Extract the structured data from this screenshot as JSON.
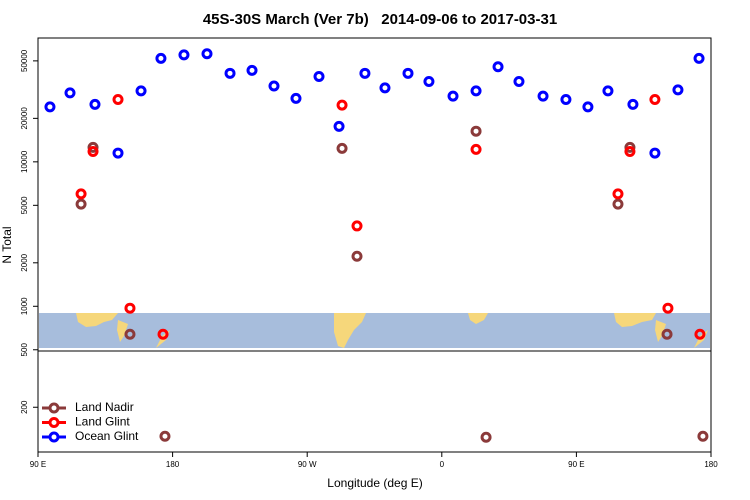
{
  "chart_data": {
    "type": "scatter",
    "title": "45S-30S March (Ver 7b)   2014-09-06 to 2017-03-31",
    "x_label": "Longitude (deg E)",
    "y_label": "N Total",
    "xlim": [
      90,
      540
    ],
    "xticks": [
      {
        "value": 90,
        "label": "90 E"
      },
      180,
      {
        "value": 270,
        "label": "90 W"
      },
      {
        "value": 360,
        "label": "0"
      },
      {
        "value": 450,
        "label": "90 E"
      },
      {
        "value": 540,
        "label": "180"
      }
    ],
    "ylim": [
      98,
      72000
    ],
    "ylog": true,
    "yticks": [
      200,
      500,
      1000,
      2000,
      5000,
      10000,
      20000,
      50000
    ],
    "legend": "lower left",
    "series": [
      {
        "name": "Land Nadir",
        "color": "#8b3a3a",
        "x": [
          118.8,
          126.8,
          151.5,
          174.9,
          293.3,
          303.3,
          382.9,
          389.6,
          477.8,
          485.8,
          510.6,
          534.6
        ],
        "values": [
          5100,
          12600,
          640,
          126,
          12400,
          2220,
          16300,
          124,
          5100,
          12600,
          640,
          126
        ]
      },
      {
        "name": "Land Glint",
        "color": "#ff0000",
        "x": [
          118.8,
          126.8,
          143.5,
          151.5,
          173.6,
          293.3,
          303.3,
          382.9,
          477.8,
          485.8,
          502.5,
          511.2,
          532.6
        ],
        "values": [
          6000,
          11800,
          27000,
          970,
          640,
          24700,
          3600,
          12200,
          6000,
          11800,
          27000,
          970,
          640
        ]
      },
      {
        "name": "Ocean Glint",
        "color": "#0000ff",
        "x": [
          98.0,
          111.4,
          128.1,
          143.5,
          158.9,
          172.2,
          187.6,
          203.0,
          218.4,
          233.1,
          247.8,
          262.5,
          277.9,
          291.3,
          308.6,
          322.0,
          337.4,
          351.4,
          367.5,
          382.9,
          397.6,
          411.6,
          427.7,
          443.0,
          457.7,
          471.1,
          487.8,
          502.5,
          517.9,
          532.0
        ],
        "values": [
          24000,
          30000,
          25000,
          11500,
          31000,
          52000,
          55000,
          56000,
          41000,
          43000,
          33500,
          27500,
          39000,
          17600,
          41000,
          32500,
          41000,
          36000,
          28500,
          31000,
          45500,
          36000,
          28500,
          27000,
          24000,
          31000,
          25000,
          11500,
          31500,
          52000
        ]
      }
    ]
  }
}
